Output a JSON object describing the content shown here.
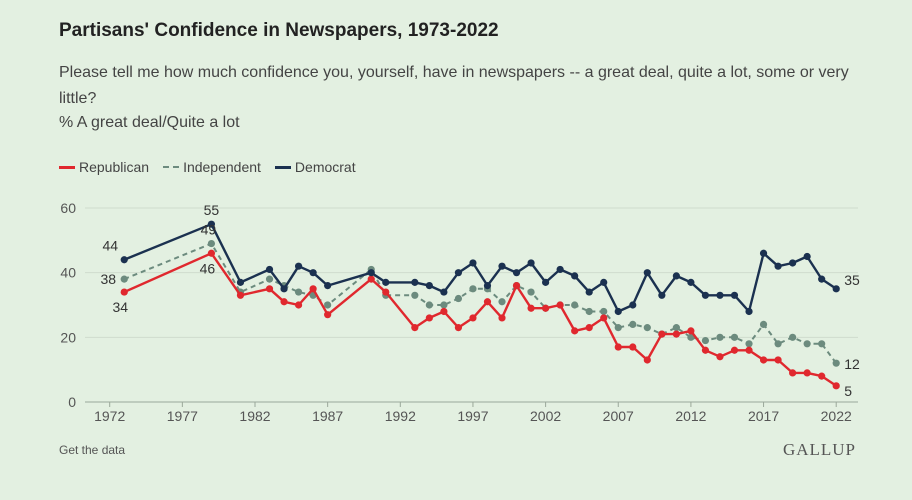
{
  "title": "Partisans' Confidence in Newspapers, 1973-2022",
  "subtitle": "Please tell me how much confidence you, yourself, have in newspapers -- a great deal, quite a lot, some or very little?",
  "measure": "% A great deal/Quite a lot",
  "footer": {
    "get_data": "Get the data",
    "logo": "GALLUP"
  },
  "colors": {
    "Republican": "#e0282e",
    "Independent": "#6c8b7e",
    "Democrat": "#1b3150"
  },
  "chart_data": {
    "type": "line",
    "title": "Partisans' Confidence in Newspapers, 1973-2022",
    "xlabel": "",
    "ylabel": "",
    "xlim": [
      1972,
      2022
    ],
    "ylim": [
      0,
      60
    ],
    "xticks": [
      1972,
      1977,
      1982,
      1987,
      1992,
      1997,
      2002,
      2007,
      2012,
      2017,
      2022
    ],
    "yticks": [
      0,
      20,
      40,
      60
    ],
    "grid": true,
    "legend": "top-left",
    "x": [
      1973,
      1979,
      1981,
      1983,
      1984,
      1985,
      1986,
      1987,
      1990,
      1991,
      1993,
      1994,
      1995,
      1996,
      1997,
      1998,
      1999,
      2000,
      2001,
      2002,
      2003,
      2004,
      2005,
      2006,
      2007,
      2008,
      2009,
      2010,
      2011,
      2012,
      2013,
      2014,
      2015,
      2016,
      2017,
      2018,
      2019,
      2020,
      2021,
      2022
    ],
    "series": [
      {
        "name": "Republican",
        "style": "solid",
        "values": [
          34,
          46,
          33,
          35,
          31,
          30,
          35,
          27,
          38,
          34,
          23,
          26,
          28,
          23,
          26,
          31,
          26,
          36,
          29,
          29,
          30,
          22,
          23,
          26,
          17,
          17,
          13,
          21,
          21,
          22,
          16,
          14,
          16,
          16,
          13,
          13,
          9,
          9,
          8,
          5
        ]
      },
      {
        "name": "Independent",
        "style": "dashed",
        "values": [
          38,
          49,
          34,
          38,
          36,
          34,
          33,
          30,
          41,
          33,
          33,
          30,
          30,
          32,
          35,
          35,
          31,
          36,
          34,
          29,
          30,
          30,
          28,
          28,
          23,
          24,
          23,
          21,
          23,
          20,
          19,
          20,
          20,
          18,
          24,
          18,
          20,
          18,
          18,
          12
        ]
      },
      {
        "name": "Democrat",
        "style": "solid",
        "values": [
          44,
          55,
          37,
          41,
          35,
          42,
          40,
          36,
          40,
          37,
          37,
          36,
          34,
          40,
          43,
          36,
          42,
          40,
          43,
          37,
          41,
          39,
          34,
          37,
          28,
          30,
          40,
          33,
          39,
          37,
          33,
          33,
          33,
          28,
          46,
          42,
          43,
          45,
          38,
          35
        ]
      }
    ],
    "data_labels": [
      {
        "series": "Democrat",
        "x": 1973,
        "value": 44
      },
      {
        "series": "Democrat",
        "x": 1979,
        "value": 55
      },
      {
        "series": "Democrat",
        "x": 2022,
        "value": 35
      },
      {
        "series": "Independent",
        "x": 1973,
        "value": 38
      },
      {
        "series": "Independent",
        "x": 1979,
        "value": 49
      },
      {
        "series": "Independent",
        "x": 2022,
        "value": 12
      },
      {
        "series": "Republican",
        "x": 1973,
        "value": 34
      },
      {
        "series": "Republican",
        "x": 1979,
        "value": 46
      },
      {
        "series": "Republican",
        "x": 2022,
        "value": 5
      }
    ]
  }
}
